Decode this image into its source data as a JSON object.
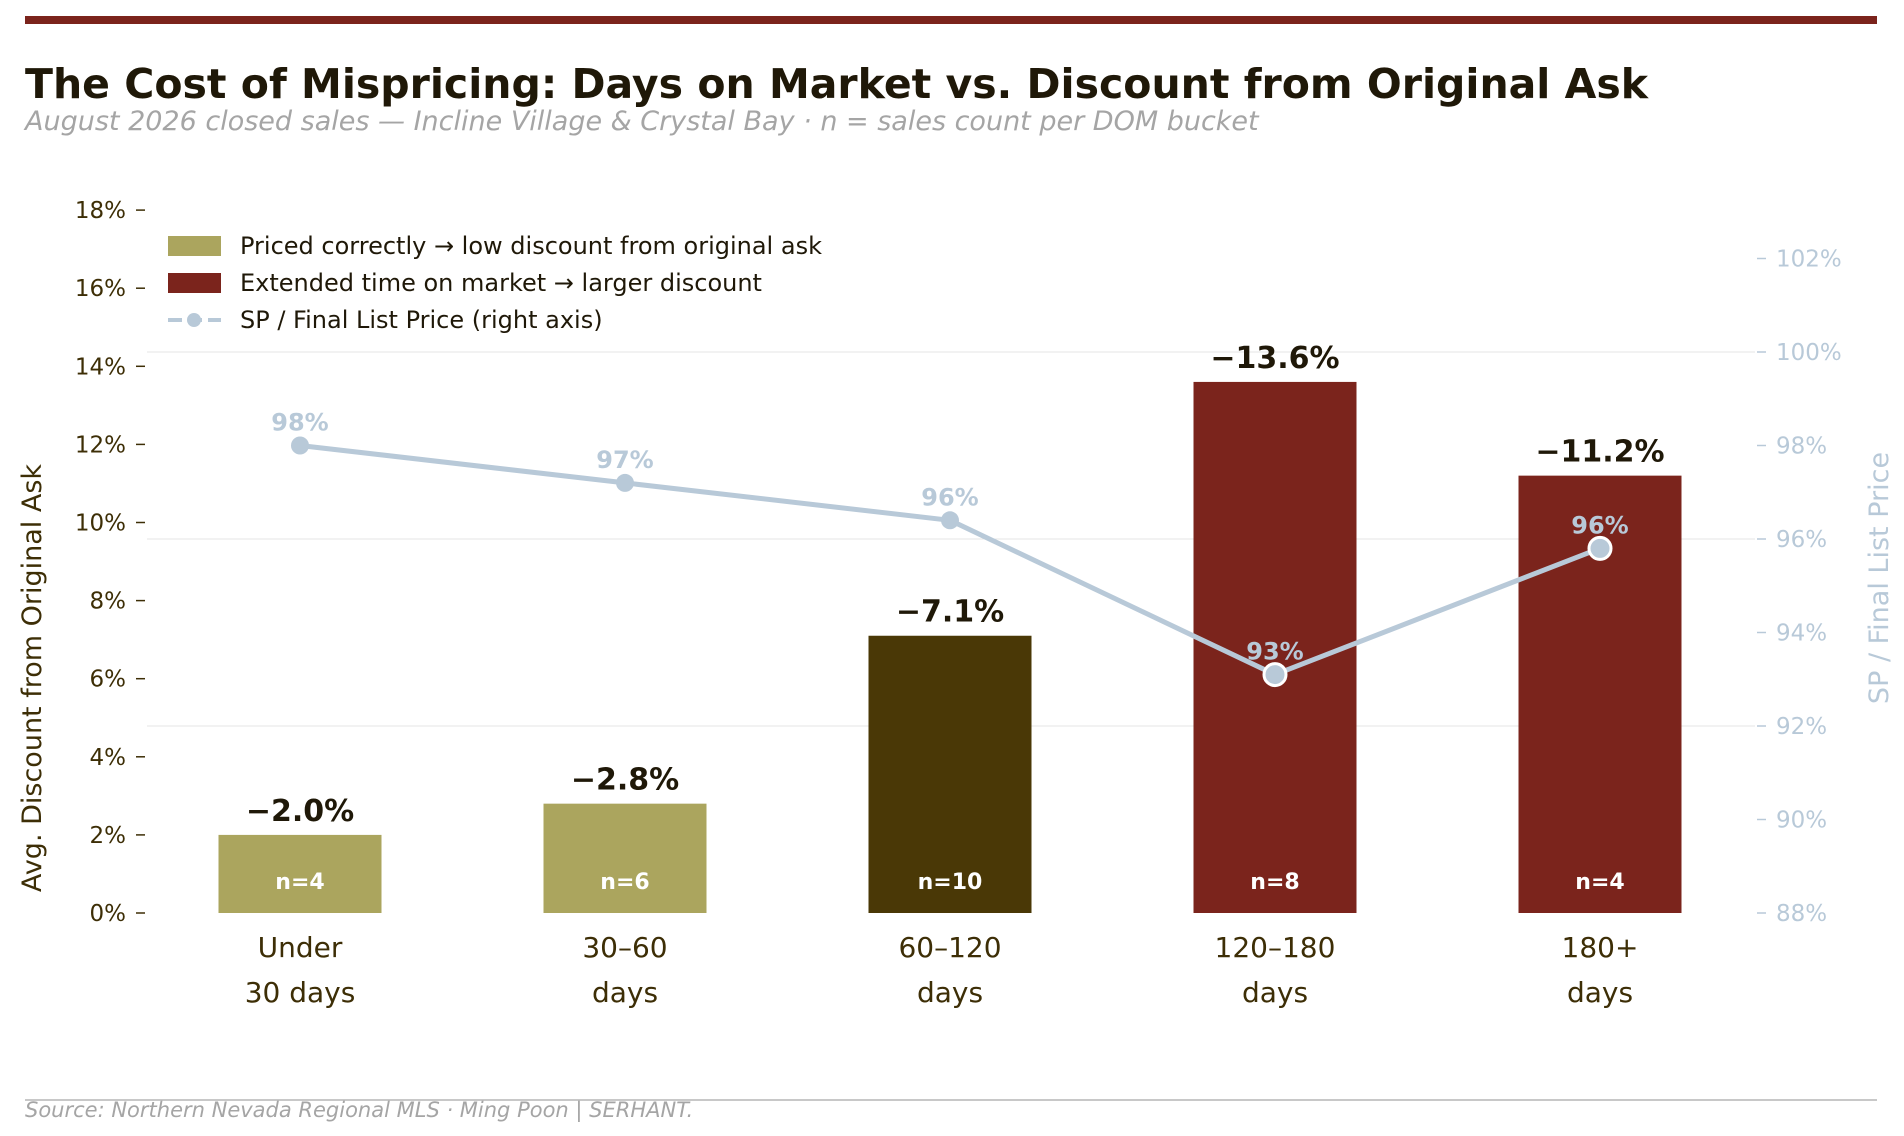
{
  "title": "The Cost of Mispricing: Days on Market vs. Discount from Original Ask",
  "subtitle": "August 2026 closed sales — Incline Village & Crystal Bay  ·  n = sales count per DOM bucket",
  "source": "Source: Northern Nevada Regional MLS  ·  Ming Poon | SERHANT.",
  "colors": {
    "accent": "#7b241c",
    "priced_correctly": "#aba55e",
    "mid": "#4a3806",
    "extended": "#7b241c",
    "line": "#b8c9d8",
    "text_dark": "#1f1808",
    "axis_left_text": "#3d2e06",
    "muted": "#a5a5a5"
  },
  "chart_data": {
    "type": "bar",
    "categories": [
      [
        "Under",
        "30 days"
      ],
      [
        "30–60",
        "days"
      ],
      [
        "60–120",
        "days"
      ],
      [
        "120–180",
        "days"
      ],
      [
        "180+",
        "days"
      ]
    ],
    "ylabel": "Avg. Discount from Original Ask",
    "y2label": "SP / Final List Price",
    "ylim": [
      0,
      18
    ],
    "yticks": [
      "0%",
      "2%",
      "4%",
      "6%",
      "8%",
      "10%",
      "12%",
      "14%",
      "16%",
      "18%"
    ],
    "y2lim": [
      88,
      103
    ],
    "y2ticks": [
      "88%",
      "90%",
      "92%",
      "94%",
      "96%",
      "98%",
      "100%",
      "102%"
    ],
    "series": [
      {
        "name": "Avg. Discount from Original Ask",
        "type": "bar",
        "values": [
          2.0,
          2.8,
          7.1,
          13.6,
          11.2
        ],
        "labels": [
          "−2.0%",
          "−2.8%",
          "−7.1%",
          "−13.6%",
          "−11.2%"
        ],
        "counts": [
          "n=4",
          "n=6",
          "n=10",
          "n=8",
          "n=4"
        ],
        "colors": [
          "#aba55e",
          "#aba55e",
          "#4a3806",
          "#7b241c",
          "#7b241c"
        ]
      },
      {
        "name": "SP / Final List Price (right axis)",
        "type": "line",
        "axis": "right",
        "values": [
          98.0,
          97.2,
          96.4,
          93.1,
          95.8
        ],
        "labels": [
          "98%",
          "97%",
          "96%",
          "93%",
          "96%"
        ]
      }
    ],
    "legend": {
      "placement": "top-left",
      "entries": [
        {
          "label": "Priced correctly → low discount from original ask",
          "color": "#aba55e",
          "kind": "box"
        },
        {
          "label": "Extended time on market → larger discount",
          "color": "#7b241c",
          "kind": "box"
        },
        {
          "label": "SP / Final List Price (right axis)",
          "color": "#b8c9d8",
          "kind": "line"
        }
      ]
    },
    "grid": true
  }
}
